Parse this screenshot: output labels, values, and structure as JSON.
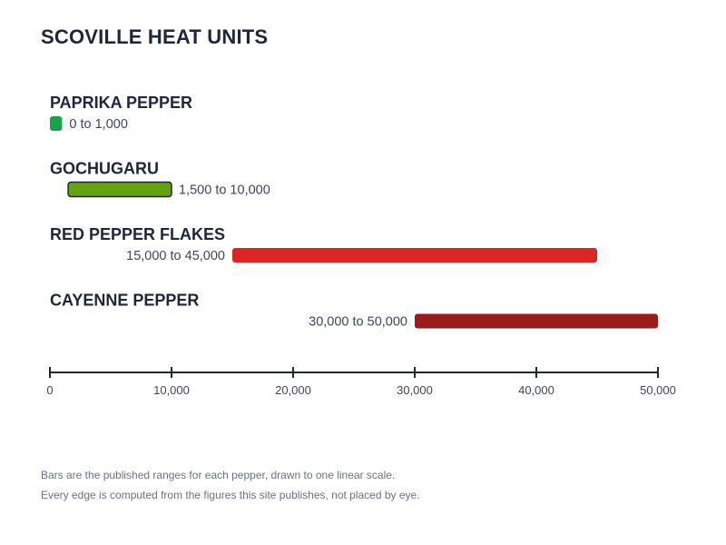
{
  "title": "SCOVILLE HEAT UNITS",
  "chart_data": {
    "type": "bar",
    "orientation": "horizontal-range",
    "title": "SCOVILLE HEAT UNITS",
    "xlim": [
      0,
      50000
    ],
    "x_ticks": [
      0,
      10000,
      20000,
      30000,
      40000,
      50000
    ],
    "x_tick_labels": [
      "0",
      "10,000",
      "20,000",
      "30,000",
      "40,000",
      "50,000"
    ],
    "grid": false,
    "series": [
      {
        "name": "PAPRIKA PEPPER",
        "min": 0,
        "max": 1000,
        "label": "0 to 1,000",
        "color": "#16a34a"
      },
      {
        "name": "GOCHUGARU",
        "min": 1500,
        "max": 10000,
        "label": "1,500 to 10,000",
        "color": "#65a30d"
      },
      {
        "name": "RED PEPPER FLAKES",
        "min": 15000,
        "max": 45000,
        "label": "15,000 to 45,000",
        "color": "#dc2626"
      },
      {
        "name": "CAYENNE PEPPER",
        "min": 30000,
        "max": 50000,
        "label": "30,000 to 50,000",
        "color": "#991b1b"
      }
    ]
  },
  "footnotes": [
    "Bars are the published ranges for each pepper, drawn to one linear scale.",
    "Every edge is computed from the figures this site publishes, not placed by eye."
  ]
}
